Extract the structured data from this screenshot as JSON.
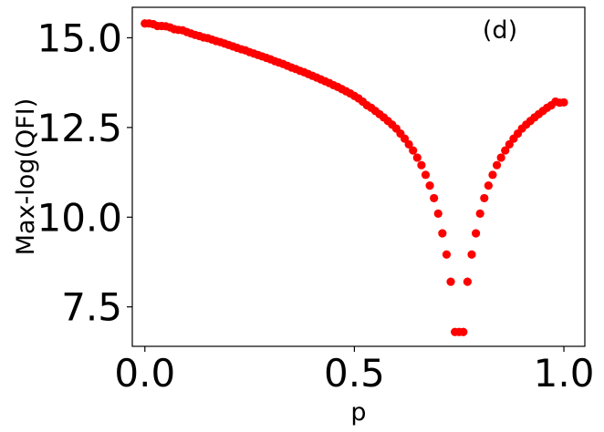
{
  "chart_data": {
    "type": "scatter",
    "annotation": "(d)",
    "xlabel": "p",
    "ylabel": "Max-log(QFI)",
    "xlim": [
      -0.03,
      1.05
    ],
    "ylim": [
      6.4,
      15.85
    ],
    "xticks": [
      0.0,
      0.5,
      1.0
    ],
    "xtick_labels": [
      "0.0",
      "0.5",
      "1.0"
    ],
    "yticks": [
      7.5,
      10.0,
      12.5,
      15.0
    ],
    "ytick_labels": [
      "7.5",
      "10.0",
      "12.5",
      "15.0"
    ],
    "grid": false,
    "marker_color": "#ff0000",
    "series": [
      {
        "x": [
          0.0,
          0.01,
          0.02,
          0.03,
          0.04,
          0.05,
          0.06,
          0.07,
          0.08,
          0.09,
          0.1,
          0.11,
          0.12,
          0.13,
          0.14,
          0.15,
          0.16,
          0.17,
          0.18,
          0.19,
          0.2,
          0.21,
          0.22,
          0.23,
          0.24,
          0.25,
          0.26,
          0.27,
          0.28,
          0.29,
          0.3,
          0.31,
          0.32,
          0.33,
          0.34,
          0.35,
          0.36,
          0.37,
          0.38,
          0.39,
          0.4,
          0.41,
          0.42,
          0.43,
          0.44,
          0.45,
          0.46,
          0.47,
          0.48,
          0.49,
          0.5,
          0.51,
          0.52,
          0.53,
          0.54,
          0.55,
          0.56,
          0.57,
          0.58,
          0.59,
          0.6,
          0.61,
          0.62,
          0.63,
          0.64,
          0.65,
          0.66,
          0.67,
          0.68,
          0.69,
          0.7,
          0.71,
          0.72,
          0.73,
          0.74,
          0.75,
          0.76,
          0.77,
          0.78,
          0.79,
          0.8,
          0.81,
          0.82,
          0.83,
          0.84,
          0.85,
          0.86,
          0.87,
          0.88,
          0.89,
          0.9,
          0.91,
          0.92,
          0.93,
          0.94,
          0.95,
          0.96,
          0.97,
          0.98,
          0.99,
          1.0
        ],
        "y": [
          15.4,
          15.4,
          15.38,
          15.33,
          15.33,
          15.32,
          15.29,
          15.24,
          15.22,
          15.21,
          15.16,
          15.12,
          15.08,
          15.05,
          15.01,
          14.99,
          14.95,
          14.91,
          14.88,
          14.84,
          14.8,
          14.76,
          14.72,
          14.68,
          14.65,
          14.6,
          14.56,
          14.52,
          14.48,
          14.44,
          14.4,
          14.35,
          14.31,
          14.27,
          14.22,
          14.17,
          14.13,
          14.08,
          14.04,
          13.99,
          13.94,
          13.89,
          13.84,
          13.79,
          13.74,
          13.68,
          13.63,
          13.57,
          13.51,
          13.45,
          13.38,
          13.31,
          13.22,
          13.12,
          13.05,
          12.96,
          12.87,
          12.78,
          12.68,
          12.58,
          12.47,
          12.33,
          12.19,
          12.03,
          11.86,
          11.66,
          11.45,
          11.18,
          10.88,
          10.53,
          10.1,
          9.55,
          8.96,
          8.2,
          6.8,
          6.8,
          6.8,
          8.2,
          8.96,
          9.55,
          10.1,
          10.53,
          10.88,
          11.18,
          11.45,
          11.66,
          11.86,
          12.03,
          12.19,
          12.33,
          12.47,
          12.58,
          12.68,
          12.78,
          12.87,
          12.96,
          13.05,
          13.12,
          13.22,
          13.19,
          13.2
        ]
      }
    ]
  }
}
